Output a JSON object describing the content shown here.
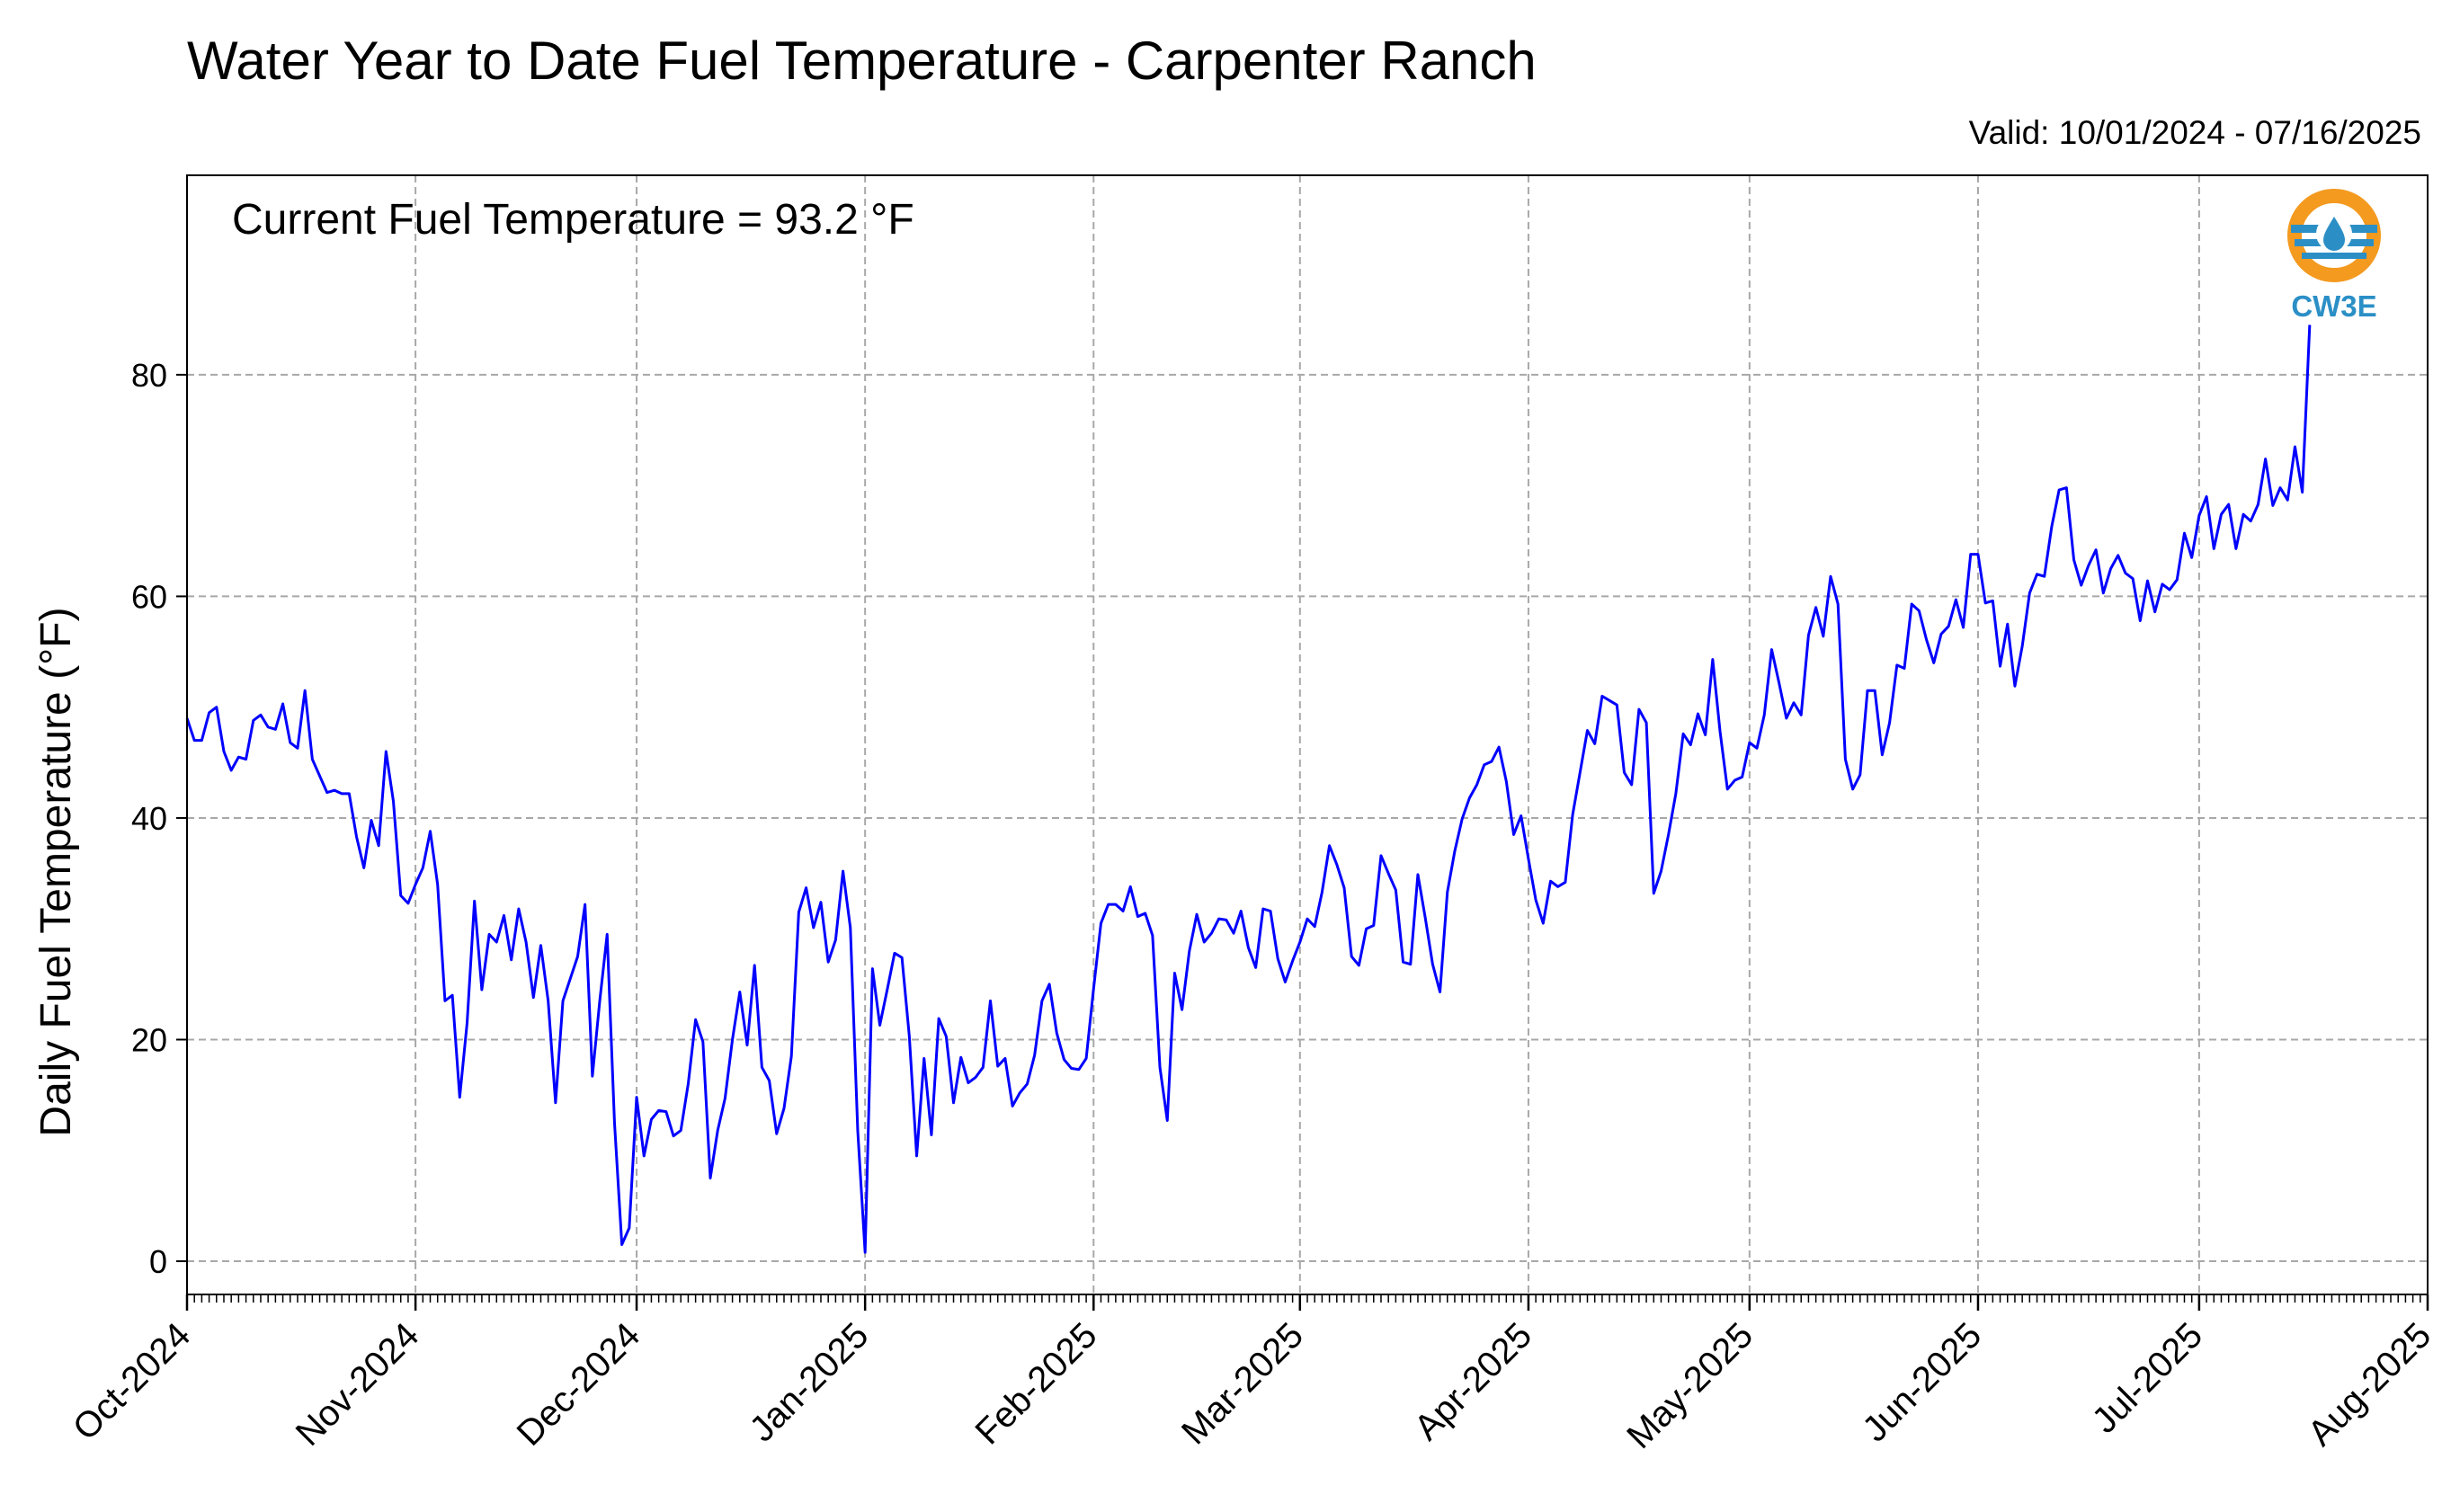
{
  "header": {
    "title": "Water Year to Date Fuel Temperature - Carpenter Ranch",
    "valid": "Valid: 10/01/2024 - 07/16/2025"
  },
  "annotation": {
    "text": "Current Fuel Temperature = 93.2 °F"
  },
  "logo": {
    "text": "CW3E",
    "ring_color": "#f39a1f",
    "wave_color": "#2b8fc6"
  },
  "chart_data": {
    "type": "line",
    "ylabel": "Daily Fuel Temperature (°F)",
    "ylim": [
      -3,
      98
    ],
    "yticks": [
      0,
      20,
      40,
      60,
      80
    ],
    "xlim": [
      "2024-10-01",
      "2025-08-01"
    ],
    "xticks": [
      {
        "date": "2024-10-01",
        "label": "Oct-2024"
      },
      {
        "date": "2024-11-01",
        "label": "Nov-2024"
      },
      {
        "date": "2024-12-01",
        "label": "Dec-2024"
      },
      {
        "date": "2025-01-01",
        "label": "Jan-2025"
      },
      {
        "date": "2025-02-01",
        "label": "Feb-2025"
      },
      {
        "date": "2025-03-01",
        "label": "Mar-2025"
      },
      {
        "date": "2025-04-01",
        "label": "Apr-2025"
      },
      {
        "date": "2025-05-01",
        "label": "May-2025"
      },
      {
        "date": "2025-06-01",
        "label": "Jun-2025"
      },
      {
        "date": "2025-07-01",
        "label": "Jul-2025"
      },
      {
        "date": "2025-08-01",
        "label": "Aug-2025"
      }
    ],
    "grid": true,
    "line_color": "#0000ff",
    "series": [
      {
        "start_date": "2024-10-01",
        "values": [
          49,
          47,
          47,
          49.5,
          50,
          46,
          44.3,
          45.5,
          45.3,
          48.8,
          49.3,
          48.2,
          48,
          50.3,
          46.8,
          46.3,
          51.5,
          45.3,
          43.8,
          42.3,
          42.5,
          42.2,
          42.2,
          38.3,
          35.5,
          39.8,
          37.5,
          46,
          41.5,
          33,
          32.3,
          34,
          35.5,
          38.8,
          34,
          23.5,
          24,
          14.8,
          21.5,
          32.5,
          24.5,
          29.5,
          28.8,
          31.2,
          27.2,
          31.8,
          28.8,
          23.8,
          28.5,
          23.5,
          14.3,
          23.5,
          25.5,
          27.5,
          32.2,
          16.7,
          23.5,
          29.5,
          12.5,
          1.5,
          3,
          14.8,
          9.5,
          12.8,
          13.6,
          13.5,
          11.3,
          11.8,
          16,
          21.8,
          19.8,
          7.5,
          11.8,
          14.7,
          20,
          24.3,
          19.5,
          26.7,
          17.5,
          16.3,
          11.5,
          13.8,
          18.5,
          31.5,
          33.7,
          30.1,
          32.4,
          27,
          29,
          35.2,
          30.1,
          11.8,
          0.8,
          26.4,
          21.3,
          24.5,
          27.8,
          27.4,
          20.3,
          9.5,
          18.3,
          11.4,
          21.9,
          20.3,
          14.3,
          18.4,
          16.1,
          16.6,
          17.5,
          23.5,
          17.6,
          18.3,
          14,
          15.2,
          16,
          18.6,
          23.5,
          25,
          20.6,
          18.2,
          17.4,
          17.3,
          18.3,
          24.6,
          30.5,
          32.2,
          32.2,
          31.6,
          33.8,
          31.1,
          31.4,
          29.4,
          17.5,
          12.7,
          26,
          22.7,
          28,
          31.3,
          28.8,
          29.6,
          30.9,
          30.8,
          29.6,
          31.6,
          28.3,
          26.5,
          31.8,
          31.6,
          27.3,
          25.2,
          27.1,
          28.8,
          30.9,
          30.2,
          33.3,
          37.5,
          35.8,
          33.7,
          27.5,
          26.7,
          30,
          30.3,
          36.6,
          35,
          33.5,
          27,
          26.8,
          34.9,
          31,
          26.8,
          24.3,
          33.3,
          37,
          39.9,
          41.8,
          43,
          44.8,
          45.1,
          46.4,
          43.3,
          38.5,
          40.2,
          36.3,
          32.6,
          30.5,
          34.3,
          33.8,
          34.2,
          40.3,
          44.1,
          47.9,
          46.7,
          51,
          50.6,
          50.2,
          44.1,
          43,
          49.8,
          48.6,
          33.2,
          35.2,
          38.5,
          42.2,
          47.6,
          46.6,
          49.4,
          47.5,
          54.3,
          47.8,
          42.6,
          43.4,
          43.7,
          46.8,
          46.3,
          49.3,
          55.2,
          52.2,
          49,
          50.4,
          49.3,
          56.5,
          59,
          56.4,
          61.8,
          59.3,
          45.3,
          42.6,
          43.9,
          51.5,
          51.5,
          45.7,
          48.6,
          53.8,
          53.5,
          59.3,
          58.7,
          56.1,
          54,
          56.6,
          57.3,
          59.7,
          57.2,
          63.8,
          63.8,
          59.4,
          59.6,
          53.7,
          57.5,
          51.9,
          55.5,
          60.3,
          62,
          61.8,
          66.3,
          69.6,
          69.8,
          63.3,
          61,
          62.8,
          64.2,
          60.3,
          62.5,
          63.7,
          62.1,
          61.6,
          57.8,
          61.4,
          58.6,
          61.1,
          60.6,
          61.5,
          65.7,
          63.5,
          67.3,
          69,
          64.3,
          67.4,
          68.3,
          64.3,
          67.4,
          66.8,
          68.3,
          72.4,
          68.2,
          69.8,
          68.7,
          73.5,
          69.4,
          84.5
        ]
      }
    ]
  }
}
